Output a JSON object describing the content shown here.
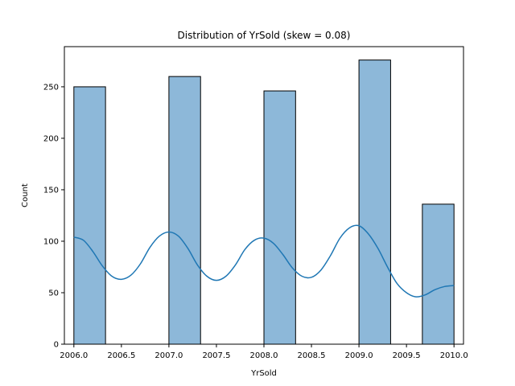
{
  "chart_data": {
    "type": "bar",
    "title": "Distribution of YrSold (skew = 0.08)",
    "xlabel": "YrSold",
    "ylabel": "Count",
    "xlim": [
      2005.9,
      2010.1
    ],
    "ylim": [
      0,
      289
    ],
    "x_ticks": [
      2006.0,
      2006.5,
      2007.0,
      2007.5,
      2008.0,
      2008.5,
      2009.0,
      2009.5,
      2010.0
    ],
    "x_tick_labels": [
      "2006.0",
      "2006.5",
      "2007.0",
      "2007.5",
      "2008.0",
      "2008.5",
      "2009.0",
      "2009.5",
      "2010.0"
    ],
    "y_ticks": [
      0,
      50,
      100,
      150,
      200,
      250
    ],
    "y_tick_labels": [
      "0",
      "50",
      "100",
      "150",
      "200",
      "250"
    ],
    "grid": false,
    "bar_color": "#8db8d9",
    "bar_edge_color": "#000000",
    "bins": [
      {
        "x0": 2006.0,
        "x1": 2006.333,
        "count": 250
      },
      {
        "x0": 2007.0,
        "x1": 2007.333,
        "count": 260
      },
      {
        "x0": 2008.0,
        "x1": 2008.333,
        "count": 246
      },
      {
        "x0": 2009.0,
        "x1": 2009.333,
        "count": 276
      },
      {
        "x0": 2009.667,
        "x1": 2010.0,
        "count": 136
      }
    ],
    "kde": {
      "color": "#1f77b4",
      "x": [
        2006.0,
        2006.1,
        2006.2,
        2006.3,
        2006.4,
        2006.5,
        2006.6,
        2006.7,
        2006.8,
        2006.9,
        2007.0,
        2007.1,
        2007.2,
        2007.3,
        2007.4,
        2007.5,
        2007.6,
        2007.7,
        2007.8,
        2007.9,
        2008.0,
        2008.1,
        2008.2,
        2008.3,
        2008.4,
        2008.5,
        2008.6,
        2008.7,
        2008.8,
        2008.9,
        2009.0,
        2009.1,
        2009.2,
        2009.3,
        2009.4,
        2009.5,
        2009.6,
        2009.7,
        2009.8,
        2009.9,
        2010.0
      ],
      "y": [
        104,
        101,
        90,
        76,
        66,
        63,
        67,
        78,
        94,
        105,
        109,
        105,
        93,
        77,
        66,
        62,
        66,
        77,
        92,
        101,
        103,
        98,
        87,
        74,
        66,
        65,
        72,
        86,
        103,
        113,
        115,
        107,
        93,
        75,
        59,
        50,
        46,
        48,
        53,
        56,
        57
      ]
    }
  }
}
